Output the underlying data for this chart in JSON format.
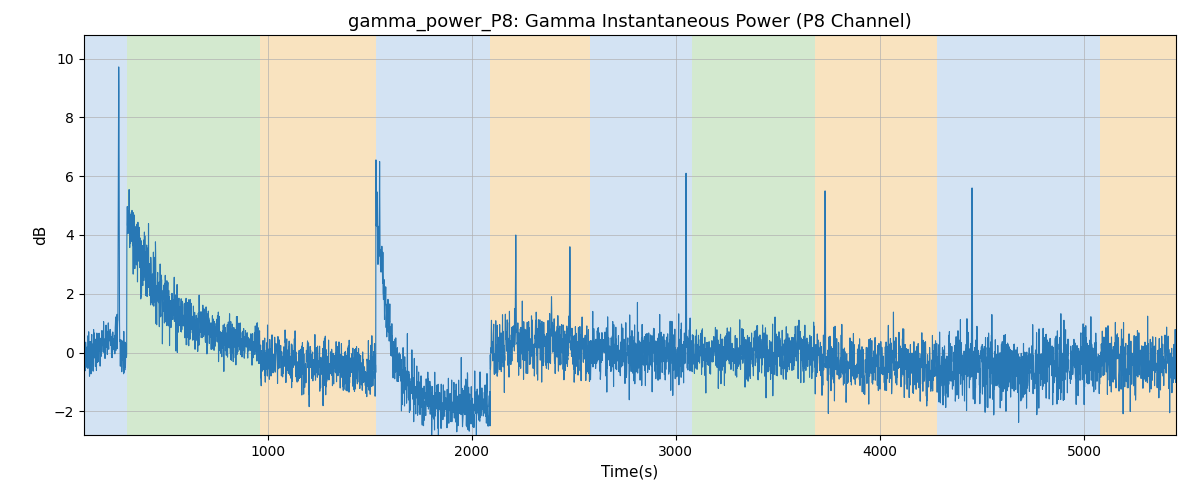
{
  "title": "gamma_power_P8: Gamma Instantaneous Power (P8 Channel)",
  "xlabel": "Time(s)",
  "ylabel": "dB",
  "ylim": [
    -2.8,
    10.8
  ],
  "xlim": [
    100,
    5450
  ],
  "line_color": "#2878b5",
  "line_width": 0.8,
  "bg_regions": [
    {
      "xstart": 100,
      "xend": 310,
      "color": "#a8c8e8",
      "alpha": 0.5
    },
    {
      "xstart": 310,
      "xend": 960,
      "color": "#a8d4a0",
      "alpha": 0.5
    },
    {
      "xstart": 960,
      "xend": 1530,
      "color": "#f5c880",
      "alpha": 0.5
    },
    {
      "xstart": 1530,
      "xend": 2090,
      "color": "#a8c8e8",
      "alpha": 0.5
    },
    {
      "xstart": 2090,
      "xend": 2580,
      "color": "#f5c880",
      "alpha": 0.5
    },
    {
      "xstart": 2580,
      "xend": 3080,
      "color": "#a8c8e8",
      "alpha": 0.5
    },
    {
      "xstart": 3080,
      "xend": 3680,
      "color": "#a8d4a0",
      "alpha": 0.5
    },
    {
      "xstart": 3680,
      "xend": 3790,
      "color": "#f5c880",
      "alpha": 0.5
    },
    {
      "xstart": 3790,
      "xend": 4280,
      "color": "#f5c880",
      "alpha": 0.5
    },
    {
      "xstart": 4280,
      "xend": 4820,
      "color": "#a8c8e8",
      "alpha": 0.5
    },
    {
      "xstart": 4820,
      "xend": 5080,
      "color": "#a8c8e8",
      "alpha": 0.5
    },
    {
      "xstart": 5080,
      "xend": 5450,
      "color": "#f5c880",
      "alpha": 0.5
    }
  ],
  "grid_color": "#b0b0b0",
  "grid_alpha": 0.8,
  "grid_linewidth": 0.6,
  "title_fontsize": 13,
  "label_fontsize": 11,
  "tick_fontsize": 10,
  "fig_width": 12.0,
  "fig_height": 5.0,
  "random_seed": 7
}
